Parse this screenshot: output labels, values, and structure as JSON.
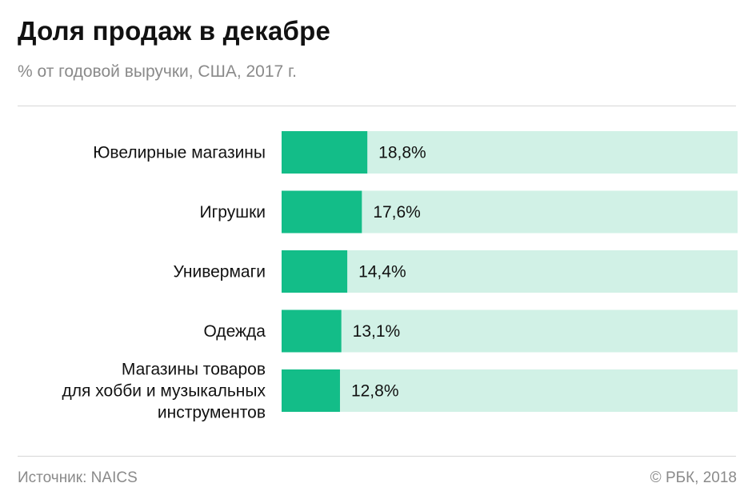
{
  "chart_data": {
    "type": "bar",
    "orientation": "horizontal",
    "title": "Доля продаж в декабре",
    "subtitle": "% от годовой выручки, США, 2017 г.",
    "categories": [
      "Ювелирные магазины",
      "Игрушки",
      "Универмаги",
      "Одежда",
      "Магазины товаров\nдля хобби и музыкальных\nинструментов"
    ],
    "values": [
      18.8,
      17.6,
      14.4,
      13.1,
      12.8
    ],
    "value_labels": [
      "18,8%",
      "17,6%",
      "14,4%",
      "13,1%",
      "12,8%"
    ],
    "xlim": [
      0,
      100
    ],
    "colors": {
      "bar": "#13bd88",
      "track": "#d1f1e6"
    }
  },
  "footer": {
    "source": "Источник: NAICS",
    "copyright": "© РБК, 2018"
  }
}
